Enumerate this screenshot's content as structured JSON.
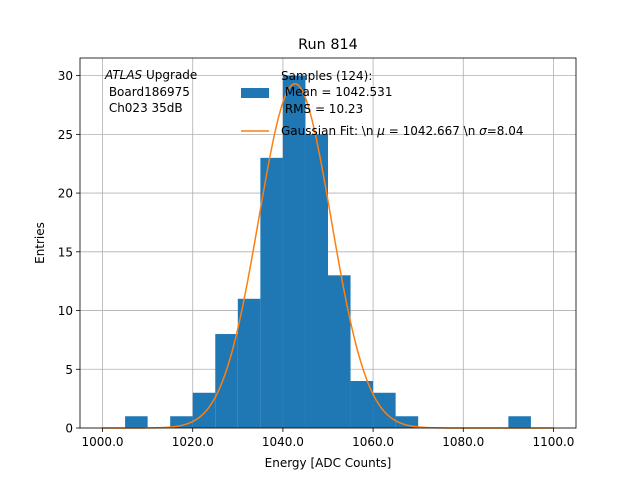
{
  "chart_data": {
    "type": "bar",
    "title": "Run 814",
    "xlabel": "Energy [ADC Counts]",
    "ylabel": "Entries",
    "xlim": [
      995,
      1105
    ],
    "ylim": [
      0,
      31.5
    ],
    "xticks": [
      1000,
      1020,
      1040,
      1060,
      1080,
      1100
    ],
    "xtick_labels": [
      "1000.0",
      "1020.0",
      "1040.0",
      "1060.0",
      "1080.0",
      "1100.0"
    ],
    "yticks": [
      0,
      5,
      10,
      15,
      20,
      25,
      30
    ],
    "ytick_labels": [
      "0",
      "5",
      "10",
      "15",
      "20",
      "25",
      "30"
    ],
    "grid": true,
    "bin_width": 5,
    "bin_edges_start": [
      1005,
      1015,
      1020,
      1025,
      1030,
      1035,
      1040,
      1045,
      1050,
      1055,
      1060,
      1065,
      1090
    ],
    "bin_counts": [
      1,
      1,
      3,
      8,
      11,
      23,
      30,
      25,
      13,
      4,
      3,
      1,
      1
    ],
    "bar_color": "#1f77b4",
    "fit": {
      "name": "Gaussian Fit: \\n $\\mu$ = 1042.667 \\n $\\sigma$=8.04",
      "mu": 1042.667,
      "sigma": 8.04,
      "amplitude": 29.3,
      "color": "#ff7f0e"
    },
    "annotation": {
      "line1_italic": "ATLAS",
      "line1_rest": " Upgrade",
      "line2": " Board186975",
      "line3": " Ch023 35dB"
    },
    "legend": {
      "placement": "top-right",
      "samples_label_line1": "Samples (124):",
      "samples_label_line2": " Mean = 1042.531",
      "samples_label_line3": " RMS = 10.23",
      "fit_label_pre": "Gaussian Fit: \\n ",
      "fit_mu_symbol": "μ",
      "fit_label_mid": " = 1042.667 \\n ",
      "fit_sigma_symbol": "σ",
      "fit_label_post": "=8.04"
    }
  }
}
